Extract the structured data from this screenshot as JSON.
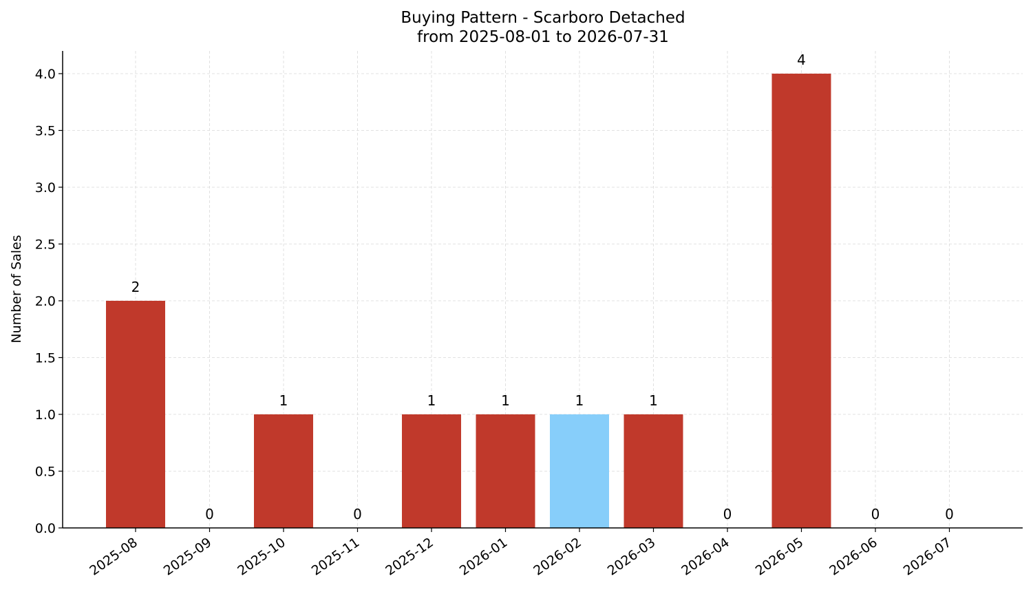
{
  "chart_data": {
    "type": "bar",
    "title_lines": [
      "Buying Pattern - Scarboro Detached",
      "from 2025-08-01 to 2026-07-31"
    ],
    "xlabel": "",
    "ylabel": "Number of Sales",
    "categories": [
      "2025-08",
      "2025-09",
      "2025-10",
      "2025-11",
      "2025-12",
      "2026-01",
      "2026-02",
      "2026-03",
      "2026-04",
      "2026-05",
      "2026-06",
      "2026-07"
    ],
    "values": [
      2,
      0,
      1,
      0,
      1,
      1,
      1,
      1,
      0,
      4,
      0,
      0
    ],
    "data_labels": [
      "2",
      "0",
      "1",
      "0",
      "1",
      "1",
      "1",
      "1",
      "0",
      "4",
      "0",
      "0"
    ],
    "highlight_category": "2026-02",
    "ylim": [
      0,
      4.2
    ],
    "y_ticks": [
      0.0,
      0.5,
      1.0,
      1.5,
      2.0,
      2.5,
      3.0,
      3.5,
      4.0
    ],
    "y_tick_labels": [
      "0.0",
      "0.5",
      "1.0",
      "1.5",
      "2.0",
      "2.5",
      "3.0",
      "3.5",
      "4.0"
    ],
    "grid": true,
    "colors": {
      "bar": "#c0392b",
      "highlight_bar": "#87cefa",
      "grid": "#d9d9d9",
      "axis": "#000000"
    }
  }
}
